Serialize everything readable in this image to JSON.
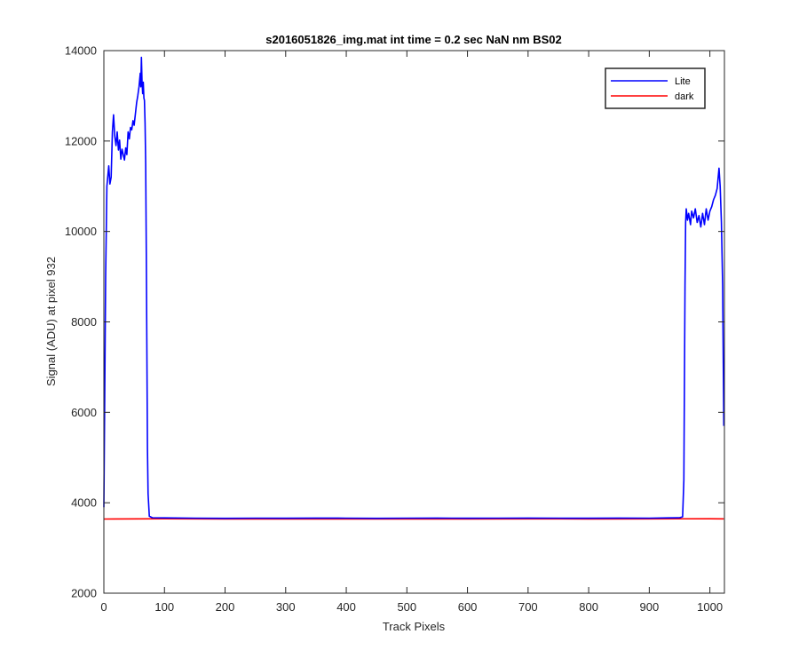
{
  "chart_data": {
    "type": "line",
    "title": "s2016051826_img.mat int time = 0.2 sec  NaN nm BS02",
    "xlabel": "Track Pixels",
    "ylabel": "Signal (ADU) at pixel 932",
    "xlim": [
      0,
      1024
    ],
    "ylim": [
      2000,
      14000
    ],
    "xticks": [
      0,
      100,
      200,
      300,
      400,
      500,
      600,
      700,
      800,
      900,
      1000
    ],
    "yticks": [
      2000,
      4000,
      6000,
      8000,
      10000,
      12000,
      14000
    ],
    "grid": false,
    "legend_position": "top-right",
    "series": [
      {
        "name": "Lite",
        "color": "#0000ff",
        "points": [
          [
            0,
            3900
          ],
          [
            3,
            9000
          ],
          [
            5,
            11000
          ],
          [
            8,
            11450
          ],
          [
            10,
            11050
          ],
          [
            12,
            11200
          ],
          [
            14,
            12200
          ],
          [
            16,
            12580
          ],
          [
            18,
            12100
          ],
          [
            20,
            11900
          ],
          [
            22,
            12200
          ],
          [
            24,
            11800
          ],
          [
            26,
            12020
          ],
          [
            28,
            11600
          ],
          [
            30,
            11820
          ],
          [
            32,
            11700
          ],
          [
            34,
            11580
          ],
          [
            36,
            11850
          ],
          [
            38,
            11700
          ],
          [
            40,
            12200
          ],
          [
            42,
            12050
          ],
          [
            44,
            12300
          ],
          [
            46,
            12250
          ],
          [
            48,
            12450
          ],
          [
            50,
            12350
          ],
          [
            52,
            12600
          ],
          [
            54,
            12850
          ],
          [
            56,
            13000
          ],
          [
            58,
            13200
          ],
          [
            60,
            13500
          ],
          [
            61,
            13200
          ],
          [
            62,
            13850
          ],
          [
            63,
            13300
          ],
          [
            64,
            13050
          ],
          [
            65,
            13300
          ],
          [
            66,
            12950
          ],
          [
            67,
            12900
          ],
          [
            68,
            12400
          ],
          [
            69,
            11500
          ],
          [
            70,
            9500
          ],
          [
            71,
            7200
          ],
          [
            72,
            5200
          ],
          [
            73,
            4200
          ],
          [
            75,
            3700
          ],
          [
            80,
            3670
          ],
          [
            100,
            3665
          ],
          [
            150,
            3660
          ],
          [
            200,
            3655
          ],
          [
            250,
            3660
          ],
          [
            300,
            3658
          ],
          [
            350,
            3662
          ],
          [
            400,
            3660
          ],
          [
            450,
            3655
          ],
          [
            500,
            3660
          ],
          [
            550,
            3662
          ],
          [
            600,
            3657
          ],
          [
            650,
            3660
          ],
          [
            700,
            3662
          ],
          [
            750,
            3660
          ],
          [
            800,
            3658
          ],
          [
            850,
            3662
          ],
          [
            900,
            3660
          ],
          [
            930,
            3665
          ],
          [
            950,
            3670
          ],
          [
            955,
            3690
          ],
          [
            957,
            4500
          ],
          [
            958,
            6500
          ],
          [
            959,
            8800
          ],
          [
            960,
            10200
          ],
          [
            961,
            10500
          ],
          [
            963,
            10250
          ],
          [
            965,
            10400
          ],
          [
            968,
            10150
          ],
          [
            970,
            10450
          ],
          [
            973,
            10300
          ],
          [
            976,
            10500
          ],
          [
            979,
            10200
          ],
          [
            982,
            10350
          ],
          [
            985,
            10100
          ],
          [
            988,
            10400
          ],
          [
            991,
            10150
          ],
          [
            994,
            10500
          ],
          [
            997,
            10250
          ],
          [
            1000,
            10450
          ],
          [
            1003,
            10550
          ],
          [
            1006,
            10700
          ],
          [
            1009,
            10800
          ],
          [
            1012,
            10950
          ],
          [
            1015,
            11400
          ],
          [
            1017,
            11000
          ],
          [
            1019,
            10200
          ],
          [
            1021,
            8800
          ],
          [
            1023,
            5700
          ]
        ]
      },
      {
        "name": "dark",
        "color": "#ff0000",
        "points": [
          [
            0,
            3640
          ],
          [
            100,
            3645
          ],
          [
            200,
            3640
          ],
          [
            300,
            3642
          ],
          [
            400,
            3640
          ],
          [
            500,
            3642
          ],
          [
            600,
            3640
          ],
          [
            700,
            3643
          ],
          [
            800,
            3641
          ],
          [
            900,
            3643
          ],
          [
            1000,
            3645
          ],
          [
            1023,
            3643
          ]
        ]
      }
    ]
  }
}
